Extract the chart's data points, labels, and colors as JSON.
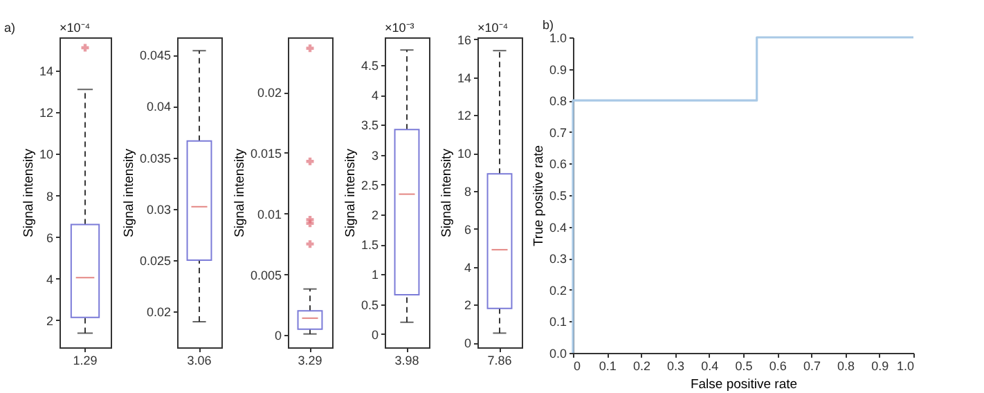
{
  "chart_data": [
    {
      "type": "box",
      "title": "a)",
      "ylabel": "Signal intensity",
      "annotations": [
        "×10⁻⁴"
      ],
      "categories": [
        "1.29"
      ],
      "boxes": [
        {
          "low": 1.38,
          "q1": 2.14,
          "median": 4.05,
          "q3": 6.6,
          "high": 13.1,
          "outliers": [
            15.1
          ]
        }
      ],
      "ylim": [
        0.7,
        15.6
      ],
      "yticks": [
        2,
        4,
        6,
        8,
        10,
        12,
        14
      ]
    },
    {
      "type": "box",
      "ylabel": "Signal intensity",
      "categories": [
        "3.06"
      ],
      "boxes": [
        {
          "low": 0.019,
          "q1": 0.025,
          "median": 0.0302,
          "q3": 0.0366,
          "high": 0.0454
        }
      ],
      "ylim": [
        0.0165,
        0.0467
      ],
      "yticks": [
        0.02,
        0.025,
        0.03,
        0.035,
        0.04,
        0.045
      ]
    },
    {
      "type": "box",
      "ylabel": "Signal intensity",
      "categories": [
        "3.29"
      ],
      "boxes": [
        {
          "low": 0.0001,
          "q1": 0.0005,
          "median": 0.0014,
          "q3": 0.002,
          "high": 0.0038,
          "outliers": [
            0.0236,
            0.0143,
            0.0095,
            0.0092,
            0.0075
          ]
        }
      ],
      "ylim": [
        -0.001,
        0.0245
      ],
      "yticks": [
        0,
        0.005,
        0.01,
        0.015,
        0.02
      ]
    },
    {
      "type": "box",
      "ylabel": "Signal intensity",
      "annotations": [
        "×10⁻³"
      ],
      "categories": [
        "3.98"
      ],
      "boxes": [
        {
          "low": 0.2,
          "q1": 0.66,
          "median": 2.34,
          "q3": 3.42,
          "high": 4.75
        }
      ],
      "ylim": [
        -0.22,
        4.96
      ],
      "yticks": [
        0,
        0.5,
        1,
        1.5,
        2,
        2.5,
        3,
        3.5,
        4,
        4.5
      ]
    },
    {
      "type": "box",
      "ylabel": "Signal intensity",
      "annotations": [
        "×10⁻⁴"
      ],
      "categories": [
        "7.86"
      ],
      "boxes": [
        {
          "low": 0.5,
          "q1": 1.8,
          "median": 4.9,
          "q3": 8.9,
          "high": 15.4
        }
      ],
      "ylim": [
        -0.25,
        16.1
      ],
      "yticks": [
        0,
        2,
        4,
        6,
        8,
        10,
        12,
        14,
        16
      ]
    },
    {
      "type": "line",
      "title": "b)",
      "xlabel": "False positive rate",
      "ylabel": "True positive rate",
      "x": [
        0,
        0,
        0.54,
        0.54,
        1
      ],
      "series": [
        {
          "color": "#a9c9e6",
          "values": [
            0,
            0.8,
            0.8,
            1,
            1
          ]
        }
      ],
      "xlim": [
        0,
        1
      ],
      "ylim": [
        0,
        1
      ],
      "xticks": [
        0,
        0.1,
        0.2,
        0.3,
        0.4,
        0.5,
        0.6,
        0.7,
        0.8,
        0.9,
        {
          "value": 1,
          "label": "1.0"
        }
      ],
      "yticks": [
        {
          "value": 0,
          "label": "0.0"
        },
        0.1,
        0.2,
        0.3,
        0.4,
        0.5,
        0.6,
        0.7,
        0.8,
        0.9,
        {
          "value": 1,
          "label": "1.0"
        }
      ]
    }
  ]
}
